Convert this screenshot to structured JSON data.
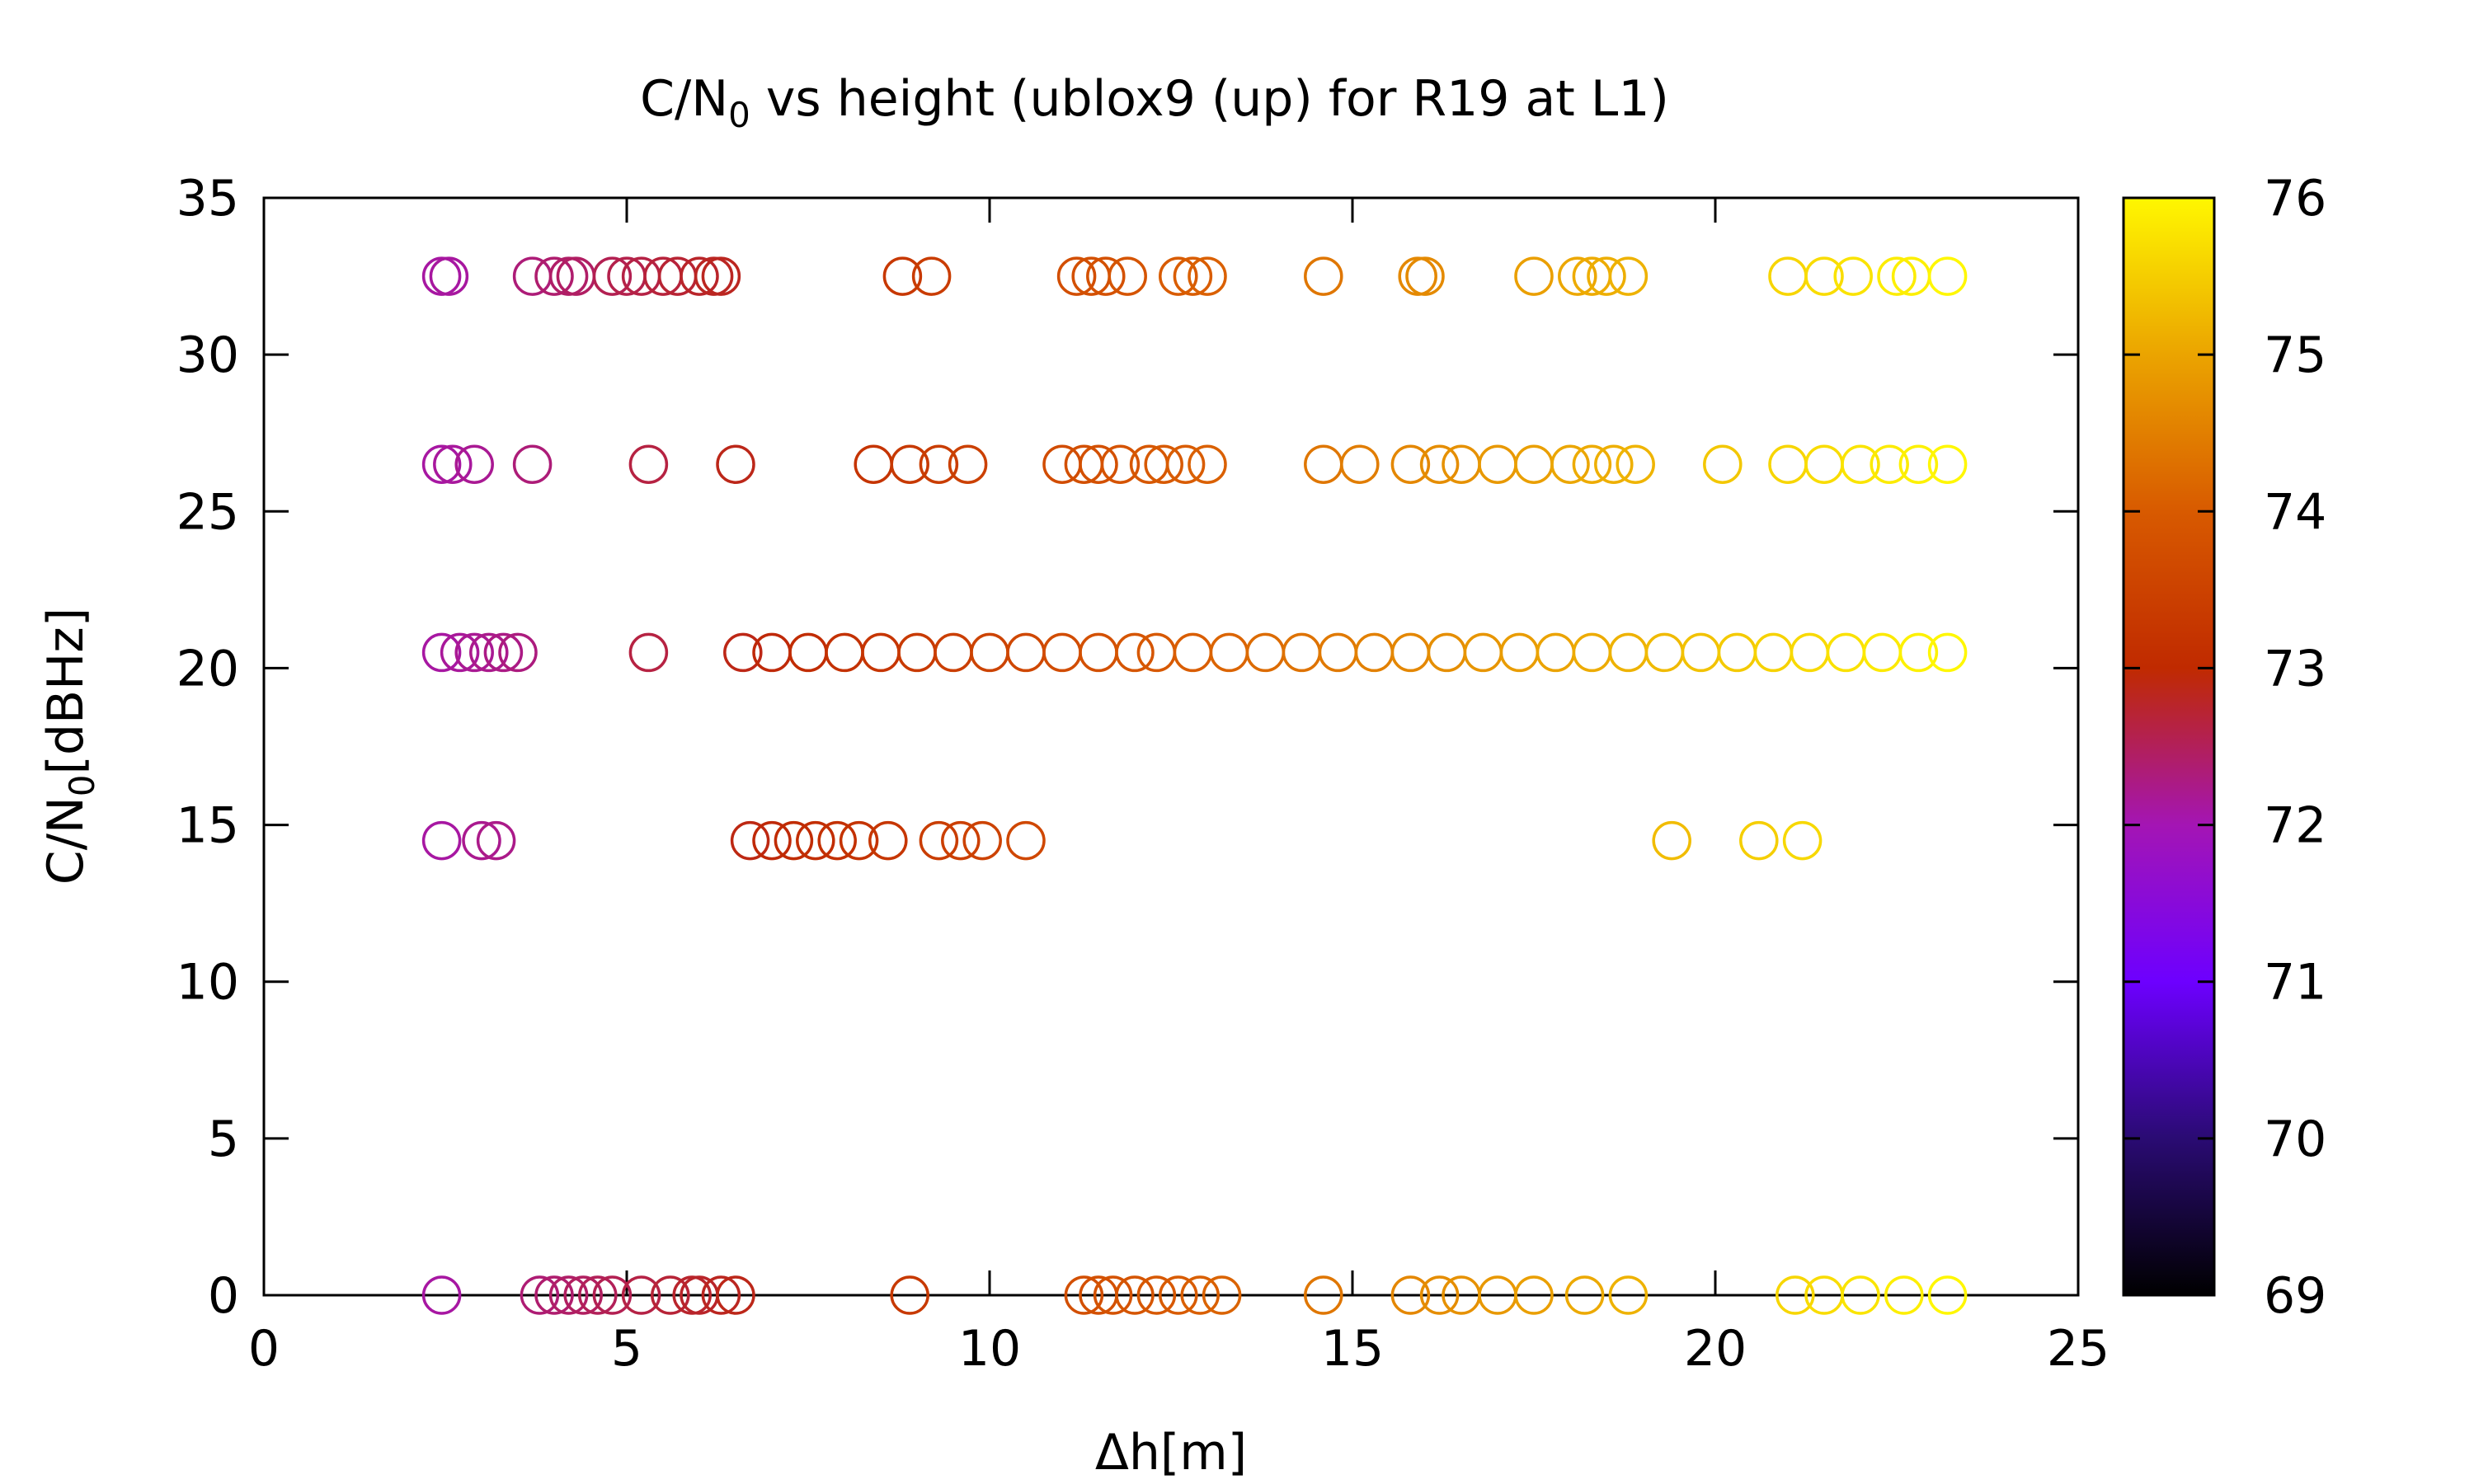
{
  "chart_data": {
    "type": "scatter",
    "title_parts": {
      "prefix": "C/N",
      "subscript": "0",
      "suffix": " vs height (ublox9 (up) for R19 at L1)"
    },
    "xlabel": "Δh[m]",
    "ylabel_parts": {
      "prefix": "C/N",
      "subscript": "0",
      "suffix": "[dBHz]"
    },
    "xlim": [
      0,
      25
    ],
    "ylim": [
      0,
      35
    ],
    "x_ticks": [
      0,
      5,
      10,
      15,
      20,
      25
    ],
    "x_tick_labels": [
      "0",
      "5",
      "10",
      "15",
      "20",
      "25"
    ],
    "y_ticks": [
      0,
      5,
      10,
      15,
      20,
      25,
      30,
      35
    ],
    "y_tick_labels": [
      "0",
      "5",
      "10",
      "15",
      "20",
      "25",
      "30",
      "35"
    ],
    "grid": false,
    "marker": "open-circle",
    "colorbar": {
      "range": [
        69,
        76
      ],
      "ticks": [
        69,
        70,
        71,
        72,
        73,
        74,
        75,
        76
      ],
      "tick_labels": [
        "69",
        "70",
        "71",
        "72",
        "73",
        "74",
        "75",
        "76"
      ],
      "palette": "black-purple-red-orange-yellow",
      "palette_colors": [
        "#000000",
        "#2a0b73",
        "#6d00ff",
        "#a415b4",
        "#c02a00",
        "#d85a00",
        "#eba400",
        "#fff700"
      ]
    },
    "series": [
      {
        "y": 32.5,
        "x": [
          2.45,
          2.55,
          3.7,
          4.0,
          4.2,
          4.3,
          4.8,
          5.0,
          5.2,
          5.5,
          5.7,
          6.0,
          6.2,
          6.3,
          8.8,
          9.2,
          11.2,
          11.4,
          11.6,
          11.9,
          12.6,
          12.8,
          13.0,
          14.6,
          15.9,
          16.0,
          17.5,
          18.1,
          18.3,
          18.5,
          18.8,
          21.0,
          21.5,
          21.9,
          22.5,
          22.7,
          23.2
        ]
      },
      {
        "y": 26.5,
        "x": [
          2.45,
          2.6,
          2.9,
          3.7,
          5.3,
          6.5,
          8.4,
          8.9,
          9.3,
          9.7,
          11.0,
          11.3,
          11.5,
          11.8,
          12.2,
          12.4,
          12.7,
          13.0,
          14.6,
          15.1,
          15.8,
          16.2,
          16.5,
          17.0,
          17.5,
          18.0,
          18.3,
          18.6,
          18.9,
          20.1,
          21.0,
          21.5,
          22.0,
          22.4,
          22.8,
          23.2
        ]
      },
      {
        "y": 20.5,
        "x": [
          2.45,
          2.7,
          2.9,
          3.1,
          3.3,
          3.5,
          5.3,
          6.6,
          7.0,
          7.5,
          8.0,
          8.5,
          9.0,
          9.5,
          10.0,
          10.5,
          11.0,
          11.5,
          12.0,
          12.3,
          12.8,
          13.3,
          13.8,
          14.3,
          14.8,
          15.3,
          15.8,
          16.3,
          16.8,
          17.3,
          17.8,
          18.3,
          18.8,
          19.3,
          19.8,
          20.3,
          20.8,
          21.3,
          21.8,
          22.3,
          22.8,
          23.2
        ]
      },
      {
        "y": 14.5,
        "x": [
          2.45,
          3.0,
          3.2,
          6.7,
          7.0,
          7.3,
          7.6,
          7.9,
          8.2,
          8.6,
          9.3,
          9.6,
          9.9,
          10.5,
          19.4,
          20.6,
          21.2
        ]
      },
      {
        "y": 0.0,
        "x": [
          2.45,
          3.8,
          4.0,
          4.2,
          4.4,
          4.6,
          4.8,
          5.2,
          5.6,
          5.9,
          6.0,
          6.3,
          6.5,
          8.9,
          11.3,
          11.5,
          11.7,
          12.0,
          12.3,
          12.6,
          12.9,
          13.2,
          14.6,
          15.8,
          16.2,
          16.5,
          17.0,
          17.5,
          18.2,
          18.8,
          21.1,
          21.5,
          22.0,
          22.6,
          23.2
        ]
      }
    ]
  }
}
